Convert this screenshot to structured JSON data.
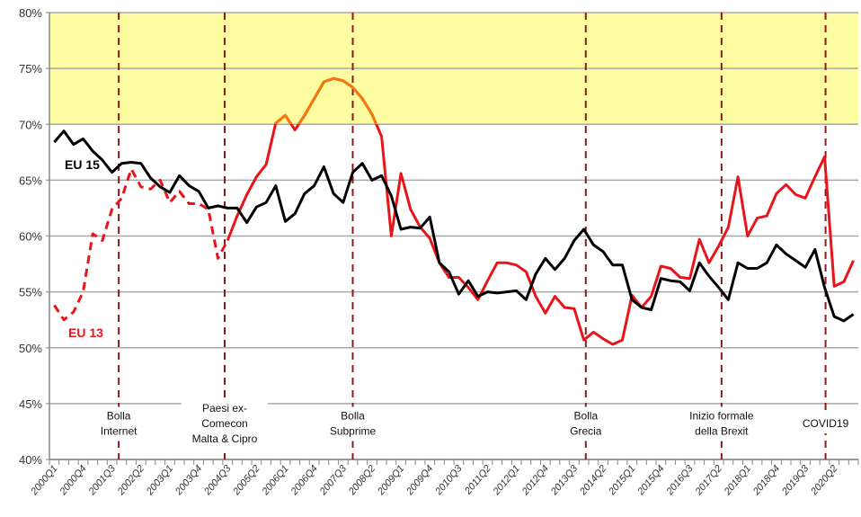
{
  "chart_data": {
    "type": "line",
    "title": "",
    "xlabel": "",
    "ylabel": "",
    "ylim": [
      40,
      80
    ],
    "yticks": [
      "40%",
      "45%",
      "50%",
      "55%",
      "60%",
      "65%",
      "70%",
      "75%",
      "80%"
    ],
    "ytick_values": [
      40,
      45,
      50,
      55,
      60,
      65,
      70,
      75,
      80
    ],
    "highlight_band": {
      "from": 70,
      "to": 80,
      "color": "#fdfca0"
    },
    "xtick_labels": [
      "2000Q1",
      "2000Q4",
      "2001Q3",
      "2002Q2",
      "2003Q1",
      "2003Q4",
      "2004Q3",
      "2005Q2",
      "2006Q1",
      "2006Q4",
      "2007Q3",
      "2008Q2",
      "2009Q1",
      "2009Q4",
      "2010Q3",
      "2011Q2",
      "2012Q1",
      "2012Q4",
      "2013Q3",
      "2014Q2",
      "2015Q1",
      "2015Q4",
      "2016Q3",
      "2017Q2",
      "2018Q1",
      "2018Q4",
      "2019Q3",
      "2020Q2"
    ],
    "x_start": "2000Q1",
    "n_quarters": 84,
    "grid": true,
    "series": [
      {
        "name": "EU 15",
        "color": "#000000",
        "values": [
          68.4,
          69.4,
          68.2,
          68.7,
          67.6,
          66.8,
          65.7,
          66.5,
          66.6,
          66.5,
          65.2,
          64.4,
          63.9,
          65.4,
          64.5,
          64.0,
          62.5,
          62.7,
          62.5,
          62.5,
          61.2,
          62.6,
          63.0,
          64.5,
          61.3,
          62.0,
          63.8,
          64.5,
          66.2,
          63.8,
          63.0,
          65.7,
          66.5,
          65.0,
          65.4,
          63.6,
          60.6,
          60.8,
          60.7,
          61.7,
          57.6,
          56.8,
          54.8,
          56.0,
          54.6,
          55.0,
          54.9,
          55.0,
          55.1,
          54.3,
          56.6,
          58.0,
          57.0,
          58.0,
          59.6,
          60.6,
          59.2,
          58.6,
          57.4,
          57.4,
          54.3,
          53.6,
          53.4,
          56.2,
          56.0,
          55.9,
          55.1,
          57.6,
          56.4,
          55.4,
          54.3,
          57.6,
          57.1,
          57.1,
          57.6,
          59.2,
          58.4,
          57.8,
          57.2,
          58.8,
          55.4,
          52.8,
          52.4,
          53.0
        ]
      },
      {
        "name": "EU 13",
        "color": "#e8141a",
        "color_above_band": "#f07a10",
        "dashed_until_index": 18,
        "values": [
          53.8,
          52.5,
          53.2,
          55.0,
          60.2,
          59.6,
          62.4,
          63.4,
          66.0,
          64.4,
          64.2,
          65.0,
          63.0,
          64.0,
          62.9,
          62.9,
          62.4,
          58.0,
          59.6,
          61.8,
          63.7,
          65.3,
          66.4,
          70.1,
          70.8,
          69.5,
          70.8,
          72.3,
          73.8,
          74.1,
          73.9,
          73.3,
          72.3,
          70.9,
          68.9,
          60.0,
          65.6,
          62.4,
          60.8,
          59.8,
          57.6,
          56.3,
          56.3,
          55.4,
          54.3,
          56.0,
          57.6,
          57.6,
          57.4,
          56.8,
          54.6,
          53.1,
          54.6,
          53.6,
          53.5,
          50.7,
          51.4,
          50.8,
          50.3,
          50.7,
          54.7,
          53.6,
          54.6,
          57.3,
          57.1,
          56.3,
          56.2,
          59.7,
          57.6,
          59.1,
          60.8,
          65.3,
          60.0,
          61.6,
          61.8,
          63.8,
          64.6,
          63.7,
          63.4,
          65.3,
          67.1,
          55.5,
          55.9,
          57.8
        ]
      }
    ],
    "events": [
      {
        "label": [
          "Bolla",
          "Internet"
        ],
        "quarter_index": 6.7
      },
      {
        "label": [
          "Paesi ex-",
          "Comecon",
          "Malta & Cipro"
        ],
        "quarter_index": 17.7
      },
      {
        "label": [
          "Bolla",
          "Subprime"
        ],
        "quarter_index": 31.0
      },
      {
        "label": [
          "Bolla",
          "Grecia"
        ],
        "quarter_index": 55.2
      },
      {
        "label": [
          "Inizio formale",
          "della Brexit"
        ],
        "quarter_index": 69.3
      },
      {
        "label": [
          "COVID19"
        ],
        "quarter_index": 80.1
      }
    ],
    "event_line_color": "#8b1a1a",
    "series_labels": [
      {
        "text": "EU 15",
        "color": "#000000"
      },
      {
        "text": "EU 13",
        "color": "#e8141a"
      }
    ]
  }
}
